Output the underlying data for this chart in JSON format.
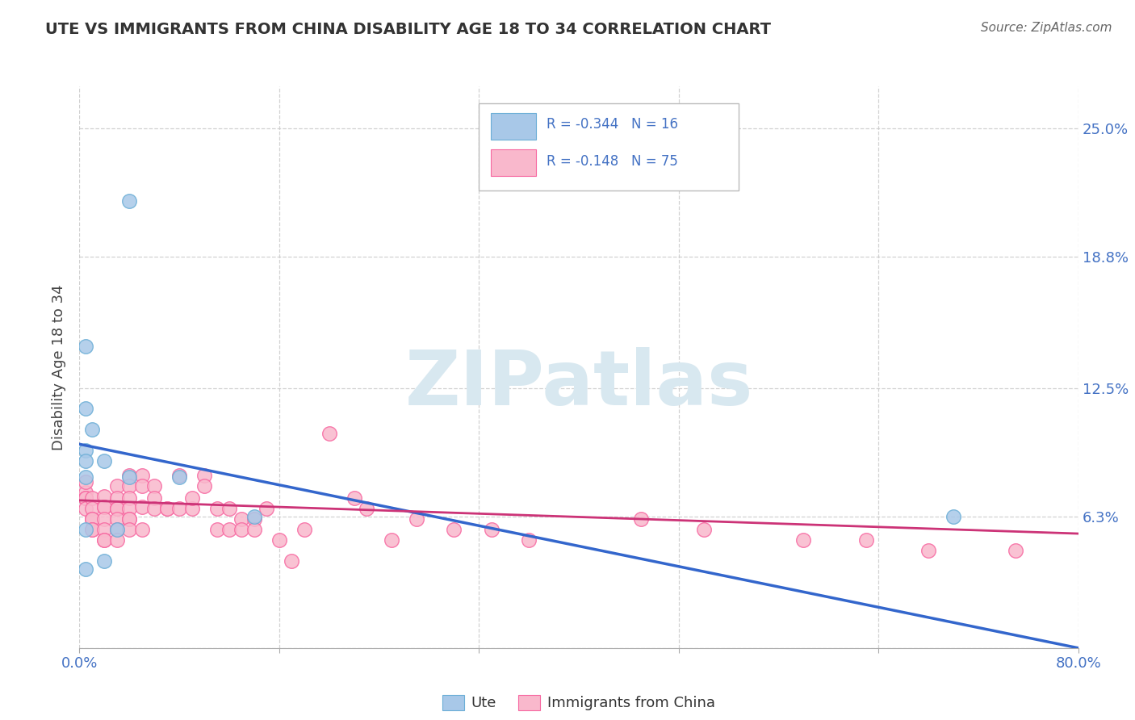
{
  "title": "UTE VS IMMIGRANTS FROM CHINA DISABILITY AGE 18 TO 34 CORRELATION CHART",
  "source": "Source: ZipAtlas.com",
  "ylabel": "Disability Age 18 to 34",
  "ute_color": "#a8c8e8",
  "ute_edge_color": "#6baed6",
  "china_color": "#f9b8cc",
  "china_edge_color": "#f768a1",
  "ute_line_color": "#3366cc",
  "china_line_color": "#cc3377",
  "background_color": "#ffffff",
  "grid_color": "#cccccc",
  "label_color": "#4472c4",
  "xlim": [
    0.0,
    0.8
  ],
  "ylim": [
    0.0,
    0.27
  ],
  "ytick_positions": [
    0.0,
    0.063,
    0.125,
    0.188,
    0.25
  ],
  "xtick_positions": [
    0.0,
    0.16,
    0.32,
    0.48,
    0.64,
    0.8
  ],
  "ute_scatter_x": [
    0.04,
    0.005,
    0.005,
    0.01,
    0.005,
    0.005,
    0.02,
    0.04,
    0.08,
    0.14,
    0.005,
    0.03,
    0.005,
    0.7,
    0.005,
    0.02
  ],
  "ute_scatter_y": [
    0.215,
    0.145,
    0.115,
    0.105,
    0.095,
    0.09,
    0.09,
    0.082,
    0.082,
    0.063,
    0.057,
    0.057,
    0.038,
    0.063,
    0.082,
    0.042
  ],
  "china_scatter_x": [
    0.005,
    0.005,
    0.005,
    0.005,
    0.005,
    0.005,
    0.01,
    0.01,
    0.01,
    0.01,
    0.01,
    0.01,
    0.02,
    0.02,
    0.02,
    0.02,
    0.02,
    0.02,
    0.02,
    0.03,
    0.03,
    0.03,
    0.03,
    0.03,
    0.03,
    0.03,
    0.03,
    0.04,
    0.04,
    0.04,
    0.04,
    0.04,
    0.04,
    0.04,
    0.05,
    0.05,
    0.05,
    0.05,
    0.06,
    0.06,
    0.06,
    0.07,
    0.07,
    0.08,
    0.08,
    0.09,
    0.09,
    0.1,
    0.1,
    0.11,
    0.11,
    0.12,
    0.12,
    0.13,
    0.13,
    0.14,
    0.14,
    0.15,
    0.16,
    0.17,
    0.18,
    0.2,
    0.22,
    0.23,
    0.25,
    0.27,
    0.3,
    0.33,
    0.36,
    0.45,
    0.5,
    0.58,
    0.63,
    0.68,
    0.75
  ],
  "china_scatter_y": [
    0.072,
    0.075,
    0.08,
    0.072,
    0.072,
    0.067,
    0.072,
    0.067,
    0.062,
    0.062,
    0.057,
    0.057,
    0.073,
    0.068,
    0.068,
    0.062,
    0.057,
    0.052,
    0.052,
    0.078,
    0.072,
    0.067,
    0.067,
    0.067,
    0.062,
    0.057,
    0.052,
    0.083,
    0.078,
    0.072,
    0.067,
    0.062,
    0.062,
    0.057,
    0.083,
    0.078,
    0.068,
    0.057,
    0.078,
    0.072,
    0.067,
    0.067,
    0.067,
    0.083,
    0.067,
    0.067,
    0.072,
    0.083,
    0.078,
    0.067,
    0.057,
    0.067,
    0.057,
    0.062,
    0.057,
    0.062,
    0.057,
    0.067,
    0.052,
    0.042,
    0.057,
    0.103,
    0.072,
    0.067,
    0.052,
    0.062,
    0.057,
    0.057,
    0.052,
    0.062,
    0.057,
    0.052,
    0.052,
    0.047,
    0.047
  ],
  "ute_trendline": [
    0.0,
    0.8,
    0.098,
    0.0
  ],
  "china_trendline": [
    0.0,
    0.8,
    0.071,
    0.055
  ],
  "legend_ute_r": "R = -0.344",
  "legend_ute_n": "N = 16",
  "legend_china_r": "R = -0.148",
  "legend_china_n": "N = 75"
}
